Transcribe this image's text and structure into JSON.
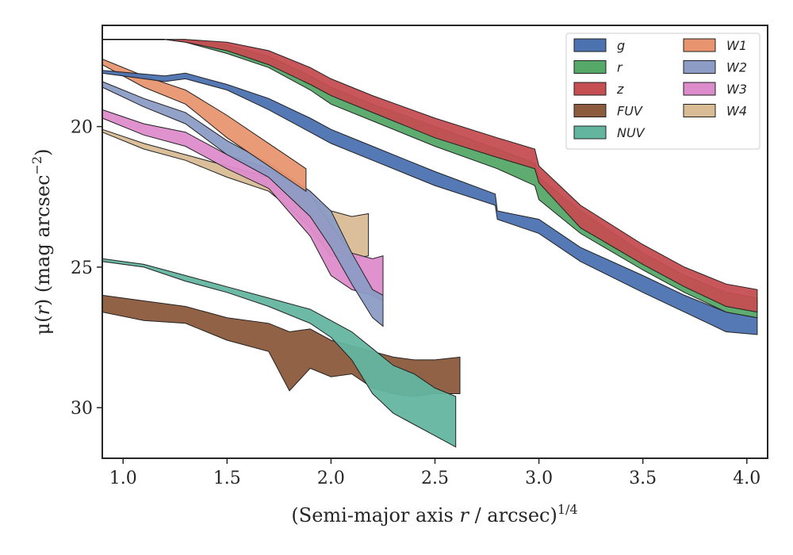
{
  "chart_data": {
    "type": "area",
    "xlabel_prefix": "(Semi-major axis ",
    "xlabel_var": "r",
    "xlabel_mid": " / arcsec)",
    "xlabel_sup": "1/4",
    "ylabel_prefix": "μ(",
    "ylabel_var": "r",
    "ylabel_mid": ") (mag arcsec",
    "ylabel_sup": "−2",
    "ylabel_suffix": ")",
    "xlim": [
      0.9,
      4.1
    ],
    "ylim": [
      31.8,
      16.4
    ],
    "y_inverted": true,
    "grid": false,
    "legend_position": "top-right",
    "x_ticks": [
      "1.0",
      "1.5",
      "2.0",
      "2.5",
      "3.0",
      "3.5",
      "4.0"
    ],
    "y_ticks": [
      "20",
      "25",
      "30"
    ],
    "series": [
      {
        "name": "g",
        "color": "#4c72b0",
        "x": [
          0.9,
          1.2,
          1.3,
          1.5,
          1.7,
          1.9,
          2.0,
          2.2,
          2.5,
          2.79,
          2.8,
          3.0,
          3.2,
          3.5,
          3.7,
          3.9,
          4.05
        ],
        "low": [
          18.0,
          18.2,
          18.1,
          18.5,
          19.0,
          19.7,
          20.1,
          20.7,
          21.6,
          22.4,
          23.0,
          23.3,
          24.3,
          25.3,
          26.0,
          26.6,
          26.8
        ],
        "high": [
          18.1,
          18.4,
          18.3,
          18.7,
          19.4,
          20.2,
          20.6,
          21.2,
          22.1,
          22.8,
          23.3,
          23.8,
          24.8,
          25.9,
          26.6,
          27.3,
          27.4
        ]
      },
      {
        "name": "r",
        "color": "#55a868",
        "x": [
          0.9,
          1.2,
          1.3,
          1.5,
          1.7,
          1.9,
          2.0,
          2.2,
          2.5,
          2.8,
          2.98,
          3.0,
          3.2,
          3.5,
          3.7,
          3.9,
          4.05
        ],
        "low": [
          16.9,
          16.9,
          16.9,
          17.1,
          17.5,
          18.2,
          18.6,
          19.2,
          20.0,
          20.8,
          21.3,
          21.8,
          23.0,
          24.5,
          25.3,
          25.9,
          26.1
        ],
        "high": [
          16.9,
          16.9,
          17.0,
          17.4,
          17.9,
          18.7,
          19.2,
          19.8,
          20.7,
          21.5,
          22.1,
          22.6,
          23.8,
          25.1,
          25.9,
          26.6,
          26.8
        ]
      },
      {
        "name": "z",
        "color": "#c44e52",
        "x": [
          0.9,
          1.2,
          1.3,
          1.5,
          1.7,
          1.9,
          2.0,
          2.2,
          2.5,
          2.8,
          2.98,
          3.0,
          3.2,
          3.5,
          3.7,
          3.9,
          4.05
        ],
        "low": [
          16.9,
          16.9,
          16.9,
          17.0,
          17.3,
          17.9,
          18.3,
          18.9,
          19.7,
          20.4,
          20.8,
          21.4,
          22.8,
          24.2,
          25.0,
          25.6,
          25.8
        ],
        "high": [
          16.9,
          16.9,
          17.0,
          17.3,
          17.8,
          18.5,
          18.9,
          19.5,
          20.4,
          21.1,
          21.5,
          22.0,
          23.6,
          24.9,
          25.7,
          26.4,
          26.6
        ]
      },
      {
        "name": "FUV",
        "color": "#8c5a3c",
        "x": [
          0.9,
          1.1,
          1.3,
          1.5,
          1.7,
          1.8,
          1.9,
          2.0,
          2.1,
          2.2,
          2.3,
          2.4,
          2.5,
          2.62
        ],
        "low": [
          26.0,
          26.2,
          26.4,
          26.8,
          27.0,
          27.3,
          27.2,
          27.6,
          27.8,
          28.0,
          28.2,
          28.3,
          28.3,
          28.2
        ],
        "high": [
          26.6,
          26.9,
          27.0,
          27.6,
          28.0,
          29.4,
          28.6,
          28.9,
          28.8,
          29.3,
          29.5,
          29.6,
          29.5,
          29.5
        ]
      },
      {
        "name": "NUV",
        "color": "#64b5a0",
        "x": [
          0.9,
          1.1,
          1.3,
          1.5,
          1.7,
          1.9,
          2.0,
          2.1,
          2.2,
          2.3,
          2.4,
          2.5,
          2.6
        ],
        "low": [
          24.7,
          24.9,
          25.3,
          25.7,
          26.1,
          26.5,
          26.9,
          27.3,
          27.9,
          28.5,
          28.8,
          29.3,
          29.6
        ],
        "high": [
          24.8,
          25.0,
          25.5,
          25.9,
          26.4,
          27.0,
          27.5,
          28.3,
          29.5,
          30.2,
          30.6,
          31.0,
          31.4
        ]
      },
      {
        "name": "W1",
        "color": "#e8956f",
        "x": [
          0.9,
          1.1,
          1.3,
          1.5,
          1.7,
          1.8,
          1.88
        ],
        "low": [
          17.6,
          18.2,
          18.7,
          19.6,
          20.6,
          21.1,
          21.5
        ],
        "high": [
          17.8,
          18.6,
          19.2,
          20.4,
          21.4,
          21.9,
          22.3
        ]
      },
      {
        "name": "W2",
        "color": "#8c9cc4",
        "x": [
          0.9,
          1.1,
          1.3,
          1.5,
          1.7,
          1.9,
          2.0,
          2.1,
          2.2,
          2.25
        ],
        "low": [
          18.4,
          19.0,
          19.5,
          20.5,
          21.3,
          22.3,
          23.0,
          24.5,
          25.8,
          26.0
        ],
        "high": [
          18.6,
          19.3,
          19.9,
          21.0,
          21.8,
          23.2,
          24.3,
          25.6,
          26.8,
          27.1
        ]
      },
      {
        "name": "W3",
        "color": "#dd8ccb",
        "x": [
          0.9,
          1.1,
          1.3,
          1.5,
          1.7,
          1.9,
          2.0,
          2.1,
          2.2,
          2.25
        ],
        "low": [
          19.4,
          19.9,
          20.2,
          21.0,
          21.5,
          22.4,
          23.5,
          24.5,
          24.7,
          24.6
        ],
        "high": [
          19.7,
          20.3,
          20.7,
          21.5,
          22.2,
          23.9,
          25.3,
          25.8,
          26.0,
          26.2
        ]
      },
      {
        "name": "W4",
        "color": "#d9bc96",
        "x": [
          0.9,
          1.1,
          1.3,
          1.5,
          1.7,
          1.8,
          1.9,
          2.0,
          2.1,
          2.18
        ],
        "low": [
          20.1,
          20.6,
          21.0,
          21.4,
          21.8,
          22.1,
          22.5,
          23.0,
          23.2,
          23.1
        ],
        "high": [
          20.2,
          20.8,
          21.2,
          21.8,
          22.3,
          22.9,
          23.6,
          24.6,
          24.7,
          24.6
        ]
      }
    ],
    "reference_line": {
      "x": [
        0.9,
        1.2
      ],
      "y": 16.9,
      "color": "#000000"
    }
  }
}
